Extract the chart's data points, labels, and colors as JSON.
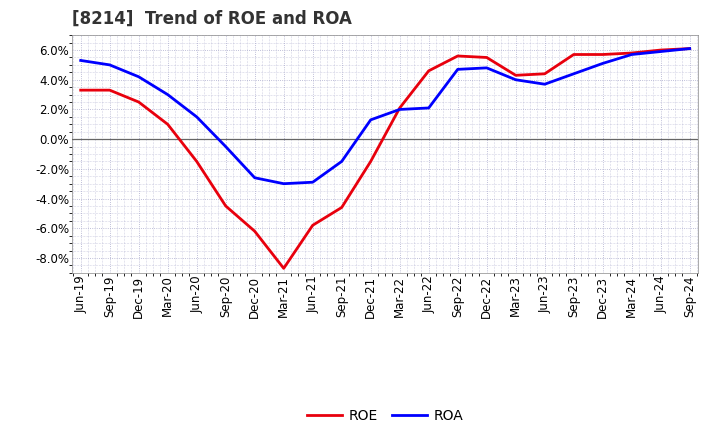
{
  "title": "[8214]  Trend of ROE and ROA",
  "x_labels": [
    "Jun-19",
    "Sep-19",
    "Dec-19",
    "Mar-20",
    "Jun-20",
    "Sep-20",
    "Dec-20",
    "Mar-21",
    "Jun-21",
    "Sep-21",
    "Dec-21",
    "Mar-22",
    "Jun-22",
    "Sep-22",
    "Dec-22",
    "Mar-23",
    "Jun-23",
    "Sep-23",
    "Dec-23",
    "Mar-24",
    "Jun-24",
    "Sep-24"
  ],
  "roe": [
    3.3,
    3.3,
    2.5,
    1.0,
    -1.5,
    -4.5,
    -6.2,
    -8.7,
    -5.8,
    -4.6,
    -1.5,
    2.1,
    4.6,
    5.6,
    5.5,
    4.3,
    4.4,
    5.7,
    5.7,
    5.8,
    6.0,
    6.1
  ],
  "roa": [
    5.3,
    5.0,
    4.2,
    3.0,
    1.5,
    -0.5,
    -2.6,
    -3.0,
    -2.9,
    -1.5,
    1.3,
    2.0,
    2.1,
    4.7,
    4.8,
    4.0,
    3.7,
    4.4,
    5.1,
    5.7,
    5.9,
    6.1
  ],
  "roe_color": "#e8000d",
  "roa_color": "#0000ff",
  "ylim": [
    -9.0,
    7.0
  ],
  "yticks": [
    -8.0,
    -6.0,
    -4.0,
    -2.0,
    0.0,
    2.0,
    4.0,
    6.0
  ],
  "background_color": "#ffffff",
  "plot_bg_color": "#ffffff",
  "grid_color": "#aaaacc",
  "line_width": 2.0,
  "title_fontsize": 12,
  "tick_fontsize": 8.5,
  "legend_fontsize": 10
}
